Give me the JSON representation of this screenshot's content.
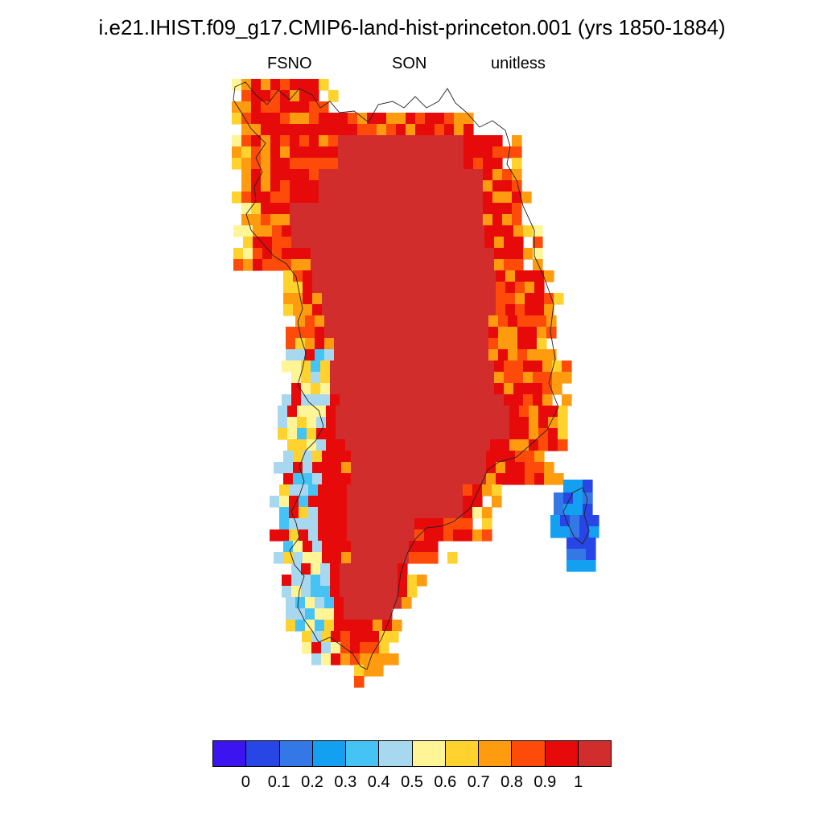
{
  "header": {
    "title": "i.e21.IHIST.f09_g17.CMIP6-land-hist-princeton.001 (yrs 1850-1884)",
    "variable": "FSNO",
    "season": "SON",
    "units": "unitless"
  },
  "colorbar": {
    "colors": [
      "#3c14f0",
      "#2846e6",
      "#3478e8",
      "#14a0f0",
      "#46c3f5",
      "#a8d8f0",
      "#fff596",
      "#ffd22d",
      "#ff9b0f",
      "#ff4b0a",
      "#e60a0a",
      "#d22d2d"
    ],
    "labels": [
      "0",
      "0.1",
      "0.2",
      "0.3",
      "0.4",
      "0.5",
      "0.6",
      "0.7",
      "0.8",
      "0.9",
      "1"
    ]
  },
  "map_data": {
    "region": "Greenland",
    "ice_sheet_interior_value": 1,
    "coastal_values_range": [
      0.4,
      1
    ],
    "eastern_island_values_range": [
      0.1,
      0.3
    ]
  }
}
